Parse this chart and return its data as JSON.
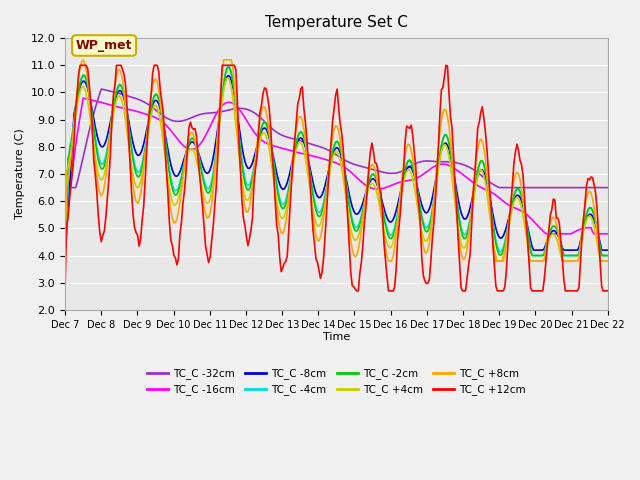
{
  "title": "Temperature Set C",
  "xlabel": "Time",
  "ylabel": "Temperature (C)",
  "ylim": [
    2.0,
    12.0
  ],
  "yticks": [
    2.0,
    3.0,
    4.0,
    5.0,
    6.0,
    7.0,
    8.0,
    9.0,
    10.0,
    11.0,
    12.0
  ],
  "xtick_labels": [
    "Dec 7",
    "Dec 8",
    "Dec 9",
    "Dec 10",
    "Dec 11",
    "Dec 12",
    "Dec 13",
    "Dec 14",
    "Dec 15",
    "Dec 16",
    "Dec 17",
    "Dec 18",
    "Dec 19",
    "Dec 20",
    "Dec 21",
    "Dec 22"
  ],
  "series": {
    "TC_C -32cm": {
      "color": "#9932CC"
    },
    "TC_C -16cm": {
      "color": "#FF00FF"
    },
    "TC_C -8cm": {
      "color": "#0000CD"
    },
    "TC_C -4cm": {
      "color": "#00DDDD"
    },
    "TC_C -2cm": {
      "color": "#00CC00"
    },
    "TC_C +4cm": {
      "color": "#CCCC00"
    },
    "TC_C +8cm": {
      "color": "#FFA500"
    },
    "TC_C +12cm": {
      "color": "#FF0000"
    }
  },
  "background_color": "#E8E8E8",
  "grid_color": "#FFFFFF",
  "linewidth": 1.2,
  "wp_met_label": "WP_met",
  "wp_met_bg": "#FFFFCC",
  "wp_met_border": "#CCAA00"
}
